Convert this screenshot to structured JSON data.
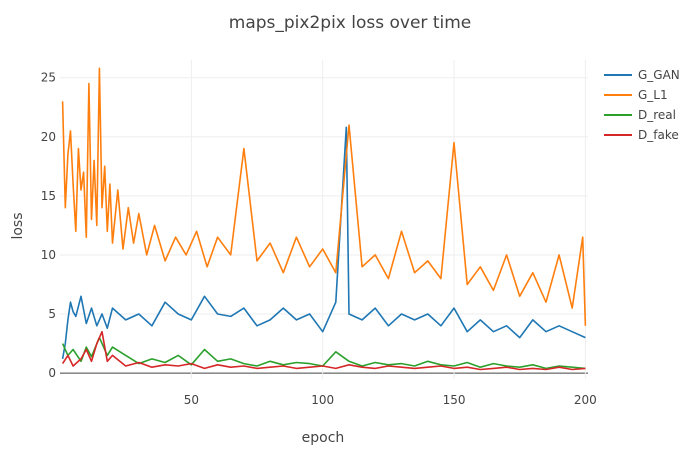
{
  "chart_data": {
    "type": "line",
    "title": "maps_pix2pix loss over time",
    "xlabel": "epoch",
    "ylabel": "loss",
    "xlim": [
      0,
      201
    ],
    "ylim": [
      -0.5,
      26.5
    ],
    "x_ticks": [
      50,
      100,
      150,
      200
    ],
    "y_ticks": [
      0,
      5,
      10,
      15,
      20,
      25
    ],
    "grid": true,
    "legend_position": "top-right",
    "colors": {
      "G_GAN": "#1f77b4",
      "G_L1": "#ff7f0e",
      "D_real": "#2ca02c",
      "D_fake": "#d62728"
    },
    "series": [
      {
        "name": "G_GAN",
        "x": [
          1,
          2,
          3,
          4,
          5,
          6,
          8,
          10,
          12,
          14,
          16,
          18,
          20,
          25,
          30,
          35,
          40,
          45,
          50,
          55,
          60,
          65,
          70,
          75,
          80,
          85,
          90,
          95,
          100,
          105,
          109,
          110,
          115,
          120,
          125,
          130,
          135,
          140,
          145,
          150,
          155,
          160,
          165,
          170,
          175,
          180,
          185,
          190,
          195,
          200
        ],
        "values": [
          1.2,
          2.5,
          4.5,
          6.0,
          5.2,
          4.8,
          6.5,
          4.2,
          5.5,
          4.0,
          5.0,
          3.8,
          5.5,
          4.5,
          5.0,
          4.0,
          6.0,
          5.0,
          4.5,
          6.5,
          5.0,
          4.8,
          5.5,
          4.0,
          4.5,
          5.5,
          4.5,
          5.0,
          3.5,
          6.0,
          20.8,
          5.0,
          4.5,
          5.5,
          4.0,
          5.0,
          4.5,
          5.0,
          4.0,
          5.5,
          3.5,
          4.5,
          3.5,
          4.0,
          3.0,
          4.5,
          3.5,
          4.0,
          3.5,
          3.0
        ]
      },
      {
        "name": "G_L1",
        "x": [
          1,
          2,
          3,
          4,
          5,
          6,
          7,
          8,
          9,
          10,
          11,
          12,
          13,
          14,
          15,
          16,
          17,
          18,
          19,
          20,
          22,
          24,
          26,
          28,
          30,
          33,
          36,
          40,
          44,
          48,
          52,
          56,
          60,
          65,
          70,
          75,
          80,
          85,
          90,
          95,
          100,
          105,
          110,
          115,
          120,
          125,
          130,
          135,
          140,
          145,
          150,
          155,
          160,
          165,
          170,
          175,
          180,
          185,
          190,
          195,
          199,
          200
        ],
        "values": [
          23.0,
          14.0,
          18.5,
          20.5,
          16.0,
          12.0,
          19.0,
          15.5,
          17.0,
          11.5,
          24.5,
          13.0,
          18.0,
          12.5,
          25.8,
          14.0,
          17.5,
          12.0,
          16.0,
          11.0,
          15.5,
          10.5,
          14.0,
          11.0,
          13.5,
          10.0,
          12.5,
          9.5,
          11.5,
          10.0,
          12.0,
          9.0,
          11.5,
          10.0,
          19.0,
          9.5,
          11.0,
          8.5,
          11.5,
          9.0,
          10.5,
          8.5,
          21.0,
          9.0,
          10.0,
          8.0,
          12.0,
          8.5,
          9.5,
          8.0,
          19.5,
          7.5,
          9.0,
          7.0,
          10.0,
          6.5,
          8.5,
          6.0,
          10.0,
          5.5,
          11.5,
          4.0
        ]
      },
      {
        "name": "D_real",
        "x": [
          1,
          3,
          5,
          8,
          10,
          12,
          15,
          18,
          20,
          25,
          30,
          35,
          40,
          45,
          50,
          55,
          60,
          65,
          70,
          75,
          80,
          85,
          90,
          95,
          100,
          105,
          110,
          115,
          120,
          125,
          130,
          135,
          140,
          145,
          150,
          155,
          160,
          165,
          170,
          175,
          180,
          185,
          190,
          195,
          200
        ],
        "values": [
          2.5,
          1.5,
          2.0,
          1.0,
          2.2,
          1.4,
          3.0,
          1.5,
          2.2,
          1.5,
          0.8,
          1.2,
          0.9,
          1.5,
          0.7,
          2.0,
          1.0,
          1.2,
          0.8,
          0.6,
          1.0,
          0.7,
          0.9,
          0.8,
          0.6,
          1.8,
          1.0,
          0.6,
          0.9,
          0.7,
          0.8,
          0.6,
          1.0,
          0.7,
          0.6,
          0.9,
          0.5,
          0.8,
          0.6,
          0.5,
          0.7,
          0.4,
          0.6,
          0.5,
          0.4
        ]
      },
      {
        "name": "D_fake",
        "x": [
          1,
          3,
          5,
          8,
          10,
          12,
          14,
          16,
          18,
          20,
          25,
          30,
          35,
          40,
          45,
          50,
          55,
          60,
          65,
          70,
          75,
          80,
          85,
          90,
          95,
          100,
          105,
          110,
          115,
          120,
          125,
          130,
          135,
          140,
          145,
          150,
          155,
          160,
          165,
          170,
          175,
          180,
          185,
          190,
          195,
          200
        ],
        "values": [
          0.8,
          1.5,
          0.6,
          1.2,
          2.0,
          1.0,
          2.5,
          3.5,
          1.0,
          1.5,
          0.6,
          0.9,
          0.5,
          0.7,
          0.6,
          0.8,
          0.4,
          0.7,
          0.5,
          0.6,
          0.4,
          0.5,
          0.6,
          0.4,
          0.5,
          0.6,
          0.4,
          0.7,
          0.5,
          0.4,
          0.6,
          0.5,
          0.4,
          0.5,
          0.6,
          0.4,
          0.5,
          0.3,
          0.4,
          0.5,
          0.3,
          0.4,
          0.3,
          0.5,
          0.3,
          0.4
        ]
      }
    ]
  }
}
